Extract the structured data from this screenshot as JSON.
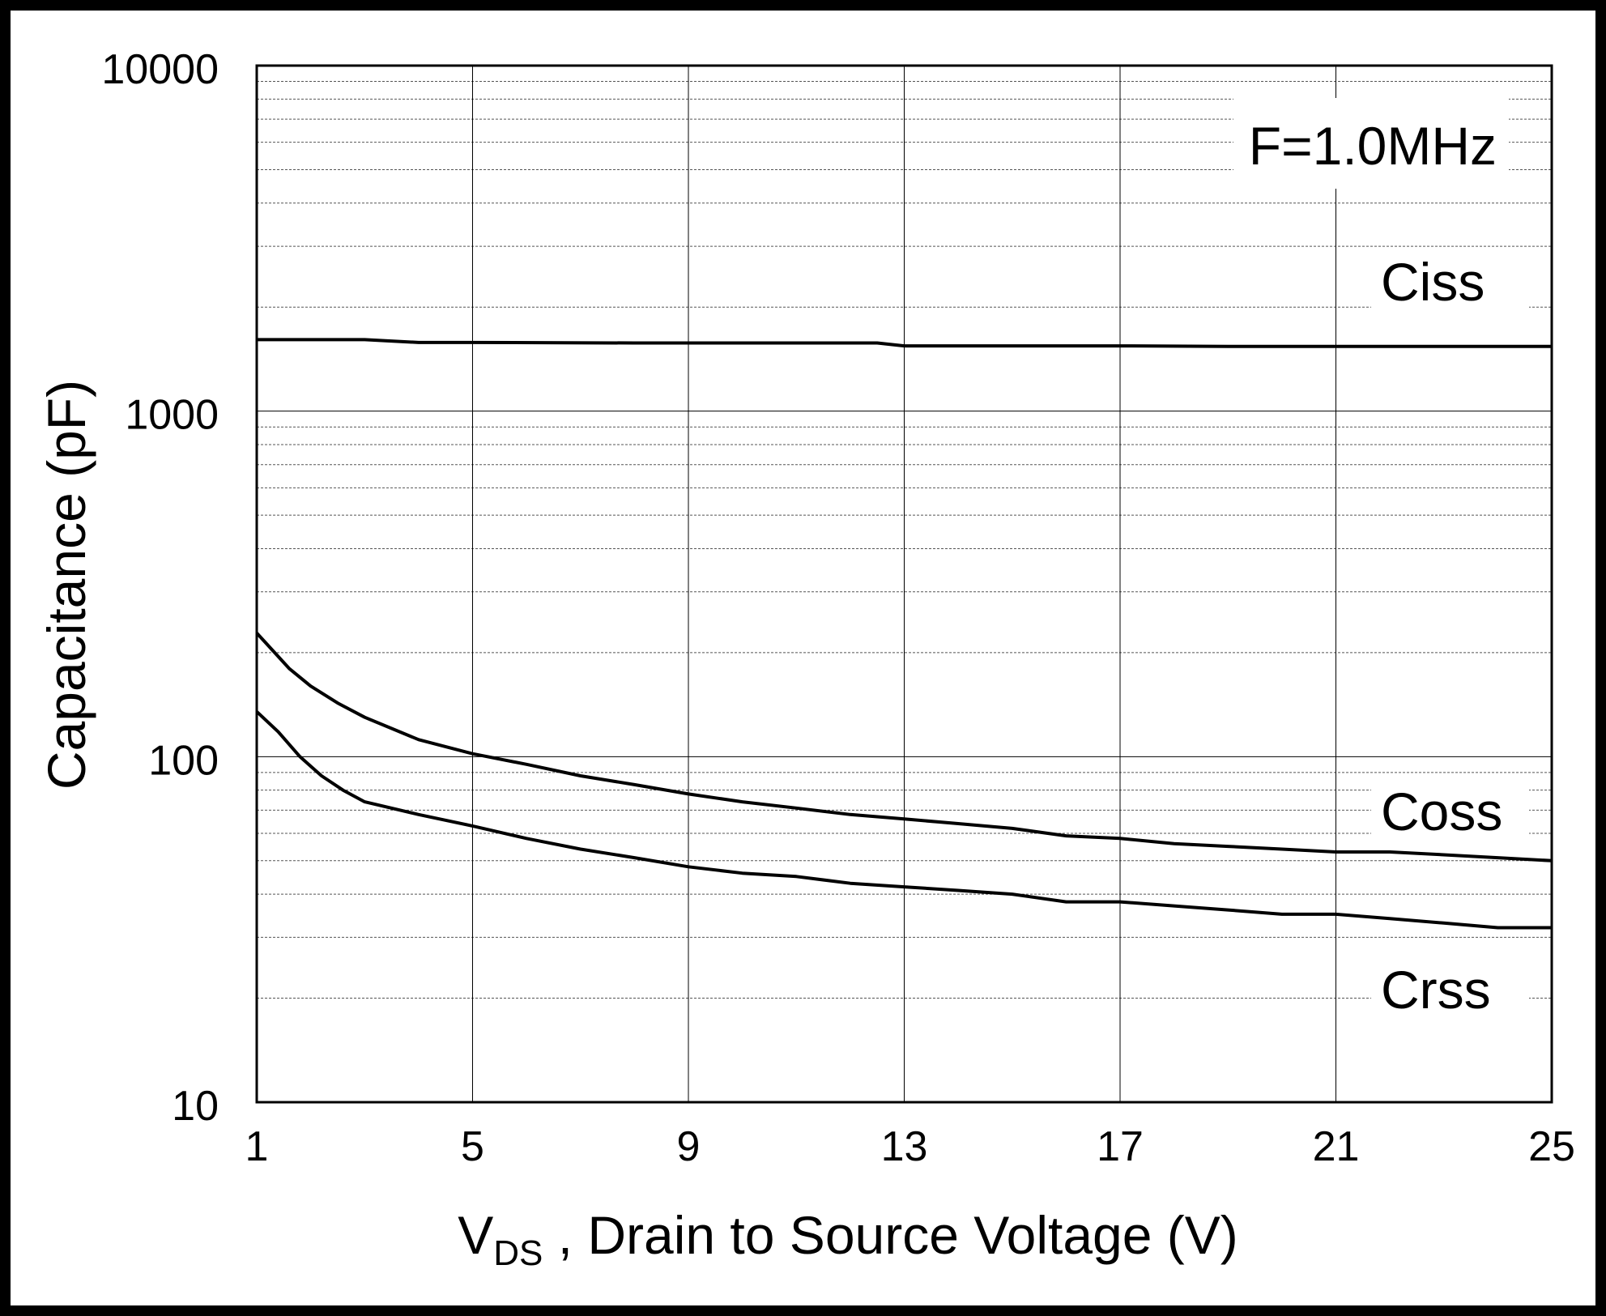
{
  "chart_data": {
    "type": "line",
    "title": "",
    "annotation": "F=1.0MHz",
    "xlabel_main": "V",
    "xlabel_sub": "DS",
    "xlabel_rest": " , Drain to Source Voltage (V)",
    "ylabel": "Capacitance (pF)",
    "xlim": [
      1,
      25
    ],
    "ylim": [
      10,
      10000
    ],
    "yscale": "log",
    "x_ticks": [
      "1",
      "5",
      "9",
      "13",
      "17",
      "21",
      "25"
    ],
    "y_ticks": [
      "10",
      "100",
      "1000",
      "10000"
    ],
    "grid": true,
    "series": [
      {
        "name": "Ciss",
        "x": [
          1,
          3,
          4,
          5,
          8,
          11,
          12.5,
          13,
          15,
          17,
          19,
          21,
          23,
          25
        ],
        "y": [
          1610,
          1610,
          1580,
          1580,
          1575,
          1575,
          1575,
          1545,
          1545,
          1545,
          1540,
          1540,
          1540,
          1540
        ]
      },
      {
        "name": "Coss",
        "x": [
          1,
          1.6,
          2,
          2.5,
          3,
          4,
          5,
          6,
          7,
          8,
          9,
          10,
          11,
          12,
          13,
          14,
          15,
          16,
          17,
          18,
          19,
          20,
          21,
          22,
          23,
          24,
          25
        ],
        "y": [
          228,
          180,
          160,
          143,
          130,
          112,
          102,
          95,
          88,
          83,
          78,
          74,
          71,
          68,
          66,
          64,
          62,
          59,
          58,
          56,
          55,
          54,
          53,
          53,
          52,
          51,
          50
        ]
      },
      {
        "name": "Crss",
        "x": [
          1,
          1.4,
          1.8,
          2.2,
          2.6,
          3,
          4,
          5,
          6,
          7,
          8,
          9,
          10,
          11,
          12,
          13,
          14,
          15,
          16,
          17,
          18,
          19,
          20,
          21,
          22,
          23,
          24,
          25
        ],
        "y": [
          135,
          118,
          100,
          88,
          80,
          74,
          68,
          63,
          58,
          54,
          51,
          48,
          46,
          45,
          43,
          42,
          41,
          40,
          38,
          38,
          37,
          36,
          35,
          35,
          34,
          33,
          32,
          32
        ]
      }
    ]
  }
}
